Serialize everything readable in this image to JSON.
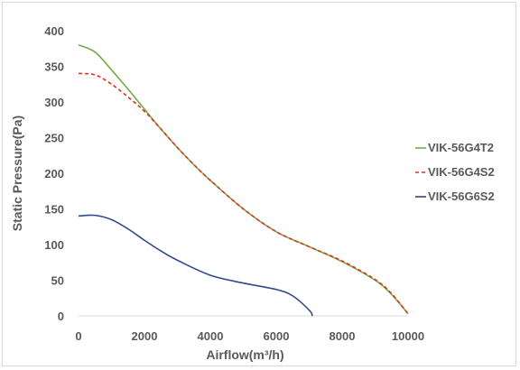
{
  "chart_data": {
    "type": "line",
    "xlabel": "Airflow(m³/h)",
    "ylabel": "Static Pressure(Pa)",
    "xlim": [
      0,
      10000
    ],
    "ylim": [
      0,
      400
    ],
    "x_ticks": [
      "0",
      "2000",
      "4000",
      "6000",
      "8000",
      "10000"
    ],
    "y_ticks": [
      "0",
      "50",
      "100",
      "150",
      "200",
      "250",
      "300",
      "350",
      "400"
    ],
    "grid": false,
    "legend_position": "right",
    "series": [
      {
        "name": "VIK-56G4T2",
        "color": "#70ad47",
        "dash": "solid",
        "x": [
          0,
          500,
          1000,
          1500,
          2000,
          2500,
          3000,
          3500,
          4000,
          5000,
          6000,
          7000,
          8000,
          9000,
          9500,
          10000
        ],
        "y": [
          380,
          370,
          345,
          318,
          290,
          262,
          236,
          212,
          190,
          150,
          118,
          97,
          76,
          50,
          30,
          3
        ]
      },
      {
        "name": "VIK-56G4S2",
        "color": "#e0301e",
        "dash": "dashed",
        "x": [
          0,
          500,
          1000,
          1500,
          2000,
          2500,
          3000,
          3500,
          4000,
          5000,
          6000,
          7000,
          8000,
          9000,
          9500,
          10000
        ],
        "y": [
          340,
          338,
          325,
          307,
          287,
          262,
          236,
          212,
          190,
          150,
          118,
          97,
          77,
          51,
          31,
          3
        ]
      },
      {
        "name": "VIK-56G6S2",
        "color": "#2f4a8a",
        "dash": "solid",
        "x": [
          0,
          500,
          1000,
          1500,
          2000,
          2500,
          3000,
          4000,
          5000,
          6000,
          6500,
          7000,
          7100
        ],
        "y": [
          140,
          141,
          135,
          122,
          106,
          91,
          78,
          57,
          46,
          37,
          28,
          8,
          0
        ]
      }
    ]
  }
}
